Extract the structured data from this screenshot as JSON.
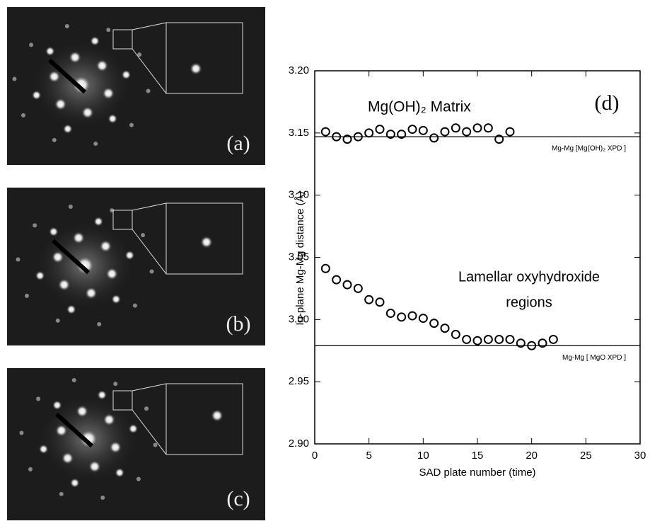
{
  "image_panels": [
    {
      "label": "(a)"
    },
    {
      "label": "(b)"
    },
    {
      "label": "(c)"
    }
  ],
  "chart_data": {
    "type": "scatter",
    "panel_label": "(d)",
    "xlabel": "SAD plate number (time)",
    "ylabel": "In-plane Mg-Mg distance (Å)",
    "xlim": [
      0,
      30
    ],
    "xticks": [
      0,
      5,
      10,
      15,
      20,
      25,
      30
    ],
    "ylim": [
      2.9,
      3.2
    ],
    "yticks": [
      {
        "value": 2.9,
        "label": "2.90"
      },
      2.95,
      {
        "value": 3,
        "label": "3.00"
      },
      3.05,
      {
        "value": 3.1,
        "label": "3.10"
      },
      3.15,
      {
        "value": 3.2,
        "label": "3.20"
      }
    ],
    "annotations": [
      "Mg(OH)₂ Matrix",
      "Lamellar oxyhydroxide",
      "regions"
    ],
    "reference_lines": [
      {
        "value": 3.147,
        "label": "Mg-Mg [Mg(OH)₂ XPD ]"
      },
      {
        "value": 2.979,
        "label": "Mg-Mg [ MgO XPD ]"
      }
    ],
    "series": [
      {
        "x": [
          1,
          2,
          3,
          4,
          5,
          6,
          7,
          8,
          9,
          10,
          11,
          12,
          13,
          14,
          15,
          16,
          17,
          18
        ],
        "color": "#000000",
        "values": [
          3.151,
          3.147,
          3.145,
          3.147,
          3.15,
          3.153,
          3.149,
          3.149,
          3.153,
          3.152,
          3.146,
          3.151,
          3.154,
          3.151,
          3.154,
          3.154,
          3.145,
          3.151
        ]
      },
      {
        "x": [
          1,
          2,
          3,
          4,
          5,
          6,
          7,
          8,
          9,
          10,
          11,
          12,
          13,
          14,
          15,
          16,
          17,
          18,
          19,
          20,
          21,
          22
        ],
        "color": "#000000",
        "values": [
          3.041,
          3.032,
          3.028,
          3.025,
          3.016,
          3.014,
          3.005,
          3.002,
          3.003,
          3.001,
          2.997,
          2.993,
          2.988,
          2.984,
          2.983,
          2.984,
          2.984,
          2.984,
          2.981,
          2.979,
          2.981,
          2.984
        ]
      }
    ]
  }
}
